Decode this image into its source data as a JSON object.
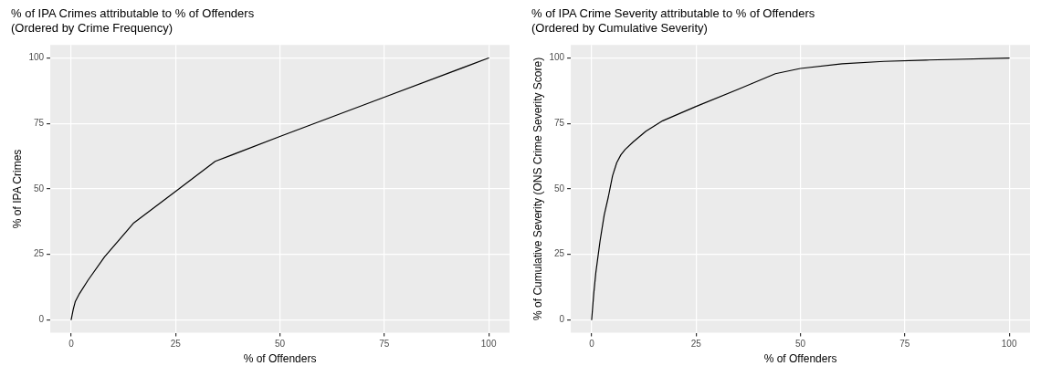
{
  "chart_data": [
    {
      "type": "line",
      "title": "% of IPA Crimes attributable to % of Offenders",
      "subtitle": "(Ordered by Crime Frequency)",
      "xlabel": "% of Offenders",
      "ylabel": "% of IPA Crimes",
      "x": [
        0,
        0.5,
        1,
        2,
        4,
        8,
        15,
        25,
        34.5,
        50,
        75,
        100
      ],
      "series": [
        {
          "color": "#000000",
          "values": [
            0,
            4,
            7,
            10,
            15,
            24,
            37,
            49,
            60.5,
            70,
            85,
            100
          ]
        }
      ],
      "xlim": [
        -5,
        105
      ],
      "ylim": [
        -5,
        105
      ],
      "xticks": [
        0,
        25,
        50,
        75,
        100
      ],
      "yticks": [
        0,
        25,
        50,
        75,
        100
      ],
      "grid": true,
      "legend": false,
      "marker": "none",
      "line_style": "solid"
    },
    {
      "type": "line",
      "title": "% of IPA Crime Severity attributable to % of Offenders",
      "subtitle": "(Ordered by Cumulative Severity)",
      "xlabel": "% of Offenders",
      "ylabel": "% of Cumulative Severity (ONS Crime Severity Score)",
      "x": [
        0,
        0.5,
        1,
        2,
        3,
        4,
        5,
        6,
        7,
        8,
        10,
        13,
        17,
        25,
        35,
        44,
        50,
        60,
        70,
        80,
        100
      ],
      "series": [
        {
          "color": "#000000",
          "values": [
            0,
            10,
            18,
            30,
            40,
            47,
            55,
            60,
            63,
            65,
            68,
            72,
            76,
            81.5,
            88,
            94,
            96,
            97.8,
            98.7,
            99.2,
            100
          ]
        }
      ],
      "xlim": [
        -5,
        105
      ],
      "ylim": [
        -5,
        105
      ],
      "xticks": [
        0,
        25,
        50,
        75,
        100
      ],
      "yticks": [
        0,
        25,
        50,
        75,
        100
      ],
      "grid": true,
      "legend": false,
      "marker": "none",
      "line_style": "solid"
    }
  ]
}
